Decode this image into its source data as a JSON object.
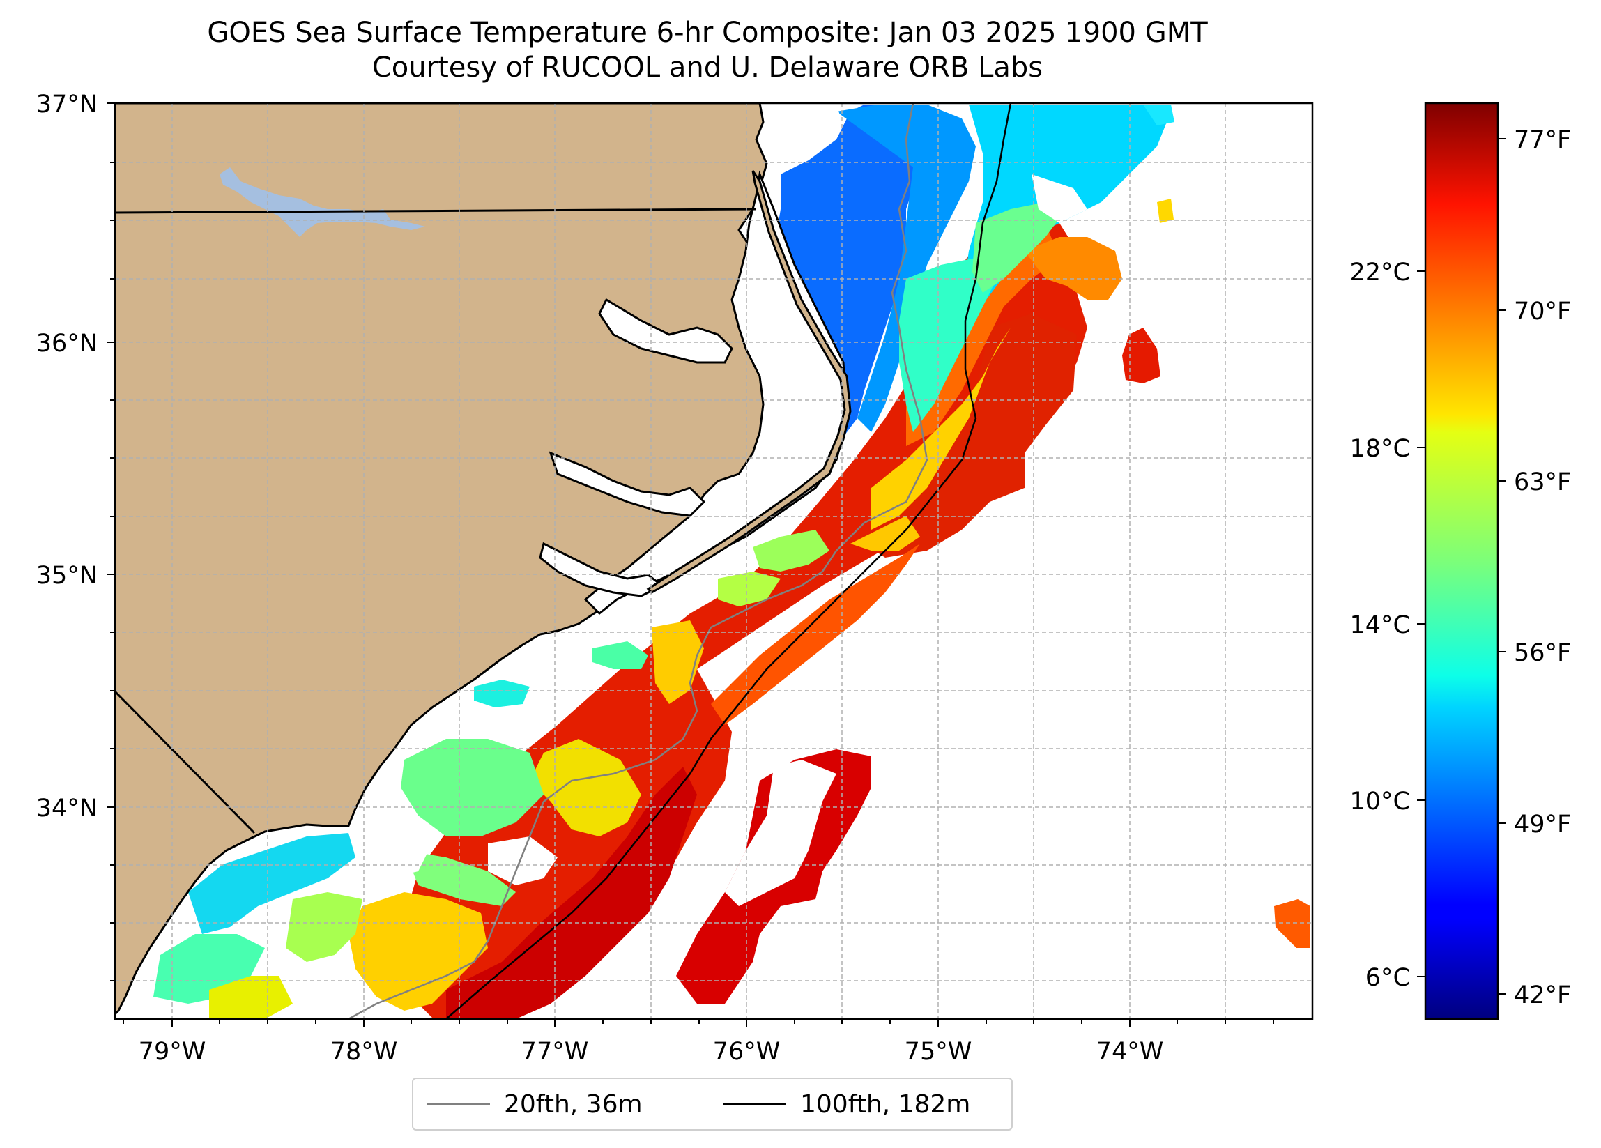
{
  "title": {
    "line1": "GOES Sea Surface Temperature 6-hr Composite: Jan 03 2025 1900 GMT",
    "line2": "Courtesy of RUCOOL and U. Delaware ORB Labs"
  },
  "map": {
    "lat_labels": [
      "37°N",
      "36°N",
      "35°N",
      "34°N"
    ],
    "lon_labels": [
      "79°W",
      "78°W",
      "77°W",
      "76°W",
      "75°W",
      "74°W"
    ],
    "extent": {
      "lon": [
        -79.3,
        -73.05
      ],
      "lat": [
        33.1,
        37.0
      ]
    },
    "colors": {
      "land": "#d2b48c",
      "lake": "#a5bfe0",
      "coastline": "#000000",
      "isobath_20fth": "#808080",
      "isobath_100fth": "#000000",
      "grid": "#b0b0b0",
      "no_data": "#ffffff"
    },
    "grid": "dashed"
  },
  "colorbar": {
    "celsius_labels": [
      "22°C",
      "18°C",
      "14°C",
      "10°C",
      "6°C"
    ],
    "fahrenheit_labels": [
      "77°F",
      "70°F",
      "63°F",
      "56°F",
      "49°F",
      "42°F"
    ],
    "range_f": [
      40,
      79
    ],
    "colormap": "jet"
  },
  "legend": {
    "items": [
      {
        "label": "20fth, 36m",
        "color": "#808080"
      },
      {
        "label": "100fth, 182m",
        "color": "#000000"
      }
    ],
    "placement": "bottom-center"
  }
}
